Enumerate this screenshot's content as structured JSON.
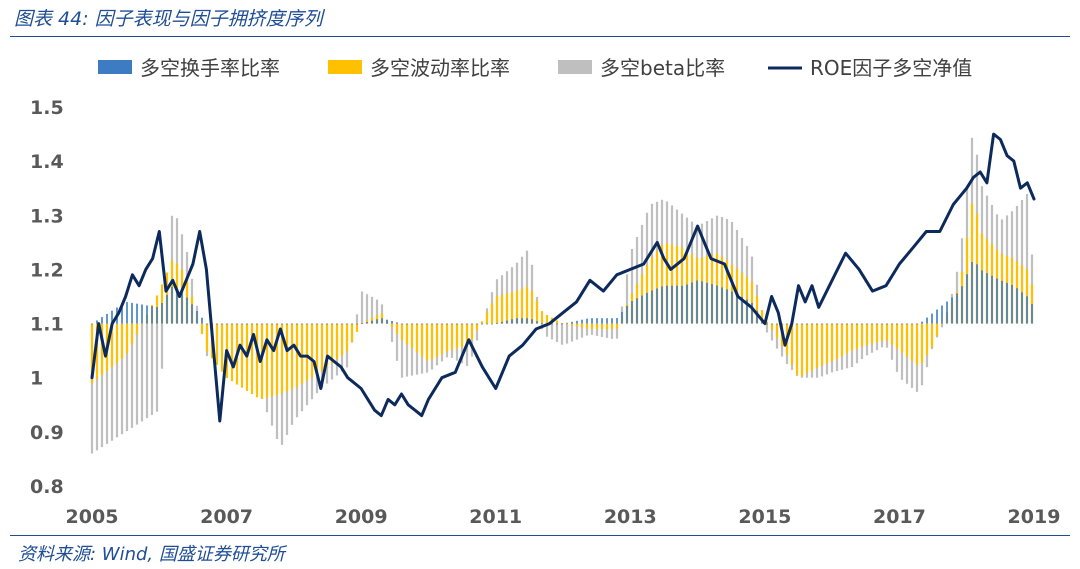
{
  "header": {
    "caption": "图表 44: 因子表现与因子拥挤度序列"
  },
  "footer": {
    "source": "资料来源: Wind, 国盛证券研究所"
  },
  "colors": {
    "turnover": "#3d7cc2",
    "volatility": "#ffc000",
    "beta": "#bfbfbf",
    "roe": "#0d2a5c",
    "accent": "#1f4e96"
  },
  "chart_data": {
    "type": "bar+line",
    "title": "因子表现与因子拥挤度序列",
    "xlabel": "",
    "ylabel": "",
    "ylim": [
      0.8,
      1.5
    ],
    "yticks": [
      "1.5",
      "1.4",
      "1.3",
      "1.2",
      "1.1",
      "1",
      "0.9",
      "0.8"
    ],
    "xlim": [
      2005,
      2019
    ],
    "xticks": [
      "2005",
      "2007",
      "2009",
      "2011",
      "2013",
      "2015",
      "2017",
      "2019"
    ],
    "bar_base": 1.1,
    "legend": {
      "turnover": "多空换手率比率",
      "volatility": "多空波动率比率",
      "beta": "多空beta比率",
      "roe": "ROE因子多空净值"
    },
    "bar_series": [
      {
        "name": "多空beta比率",
        "key": "beta",
        "x": [
          2005.0,
          2005.5,
          2006.0,
          2006.2,
          2006.4,
          2006.7,
          2007.0,
          2007.5,
          2007.8,
          2008.0,
          2008.4,
          2008.8,
          2009.0,
          2009.3,
          2009.6,
          2010.0,
          2010.3,
          2010.6,
          2011.0,
          2011.3,
          2011.5,
          2011.7,
          2012.0,
          2012.4,
          2012.8,
          2013.0,
          2013.3,
          2013.5,
          2013.8,
          2014.0,
          2014.3,
          2014.5,
          2014.8,
          2015.0,
          2015.3,
          2015.5,
          2015.8,
          2016.0,
          2016.3,
          2016.5,
          2016.8,
          2017.0,
          2017.3,
          2017.5,
          2017.7,
          2017.9,
          2018.1,
          2018.2,
          2018.5,
          2018.7,
          2018.9,
          2019.0
        ],
        "values": [
          0.86,
          0.9,
          0.94,
          1.32,
          1.24,
          1.04,
          1.04,
          0.97,
          0.87,
          0.92,
          0.98,
          1.02,
          1.16,
          1.14,
          1.0,
          1.01,
          1.04,
          1.02,
          1.18,
          1.21,
          1.24,
          1.08,
          1.06,
          1.08,
          1.07,
          1.23,
          1.32,
          1.33,
          1.3,
          1.28,
          1.3,
          1.29,
          1.23,
          1.09,
          1.03,
          1.0,
          1.0,
          1.01,
          1.02,
          1.04,
          1.06,
          1.0,
          0.97,
          1.06,
          1.11,
          1.22,
          1.47,
          1.36,
          1.29,
          1.31,
          1.34,
          1.18
        ]
      },
      {
        "name": "多空波动率比率",
        "key": "volatility",
        "x": [
          2005.0,
          2005.5,
          2006.0,
          2006.2,
          2006.4,
          2006.7,
          2007.0,
          2007.5,
          2007.8,
          2008.0,
          2008.4,
          2008.8,
          2009.0,
          2009.3,
          2009.6,
          2010.0,
          2010.3,
          2010.6,
          2011.0,
          2011.3,
          2011.5,
          2011.7,
          2012.0,
          2012.4,
          2012.8,
          2013.0,
          2013.3,
          2013.5,
          2013.8,
          2014.0,
          2014.3,
          2014.5,
          2014.8,
          2015.0,
          2015.3,
          2015.5,
          2015.8,
          2016.0,
          2016.3,
          2016.5,
          2016.8,
          2017.0,
          2017.3,
          2017.5,
          2017.7,
          2017.9,
          2018.1,
          2018.2,
          2018.5,
          2018.7,
          2018.9,
          2019.0
        ],
        "values": [
          0.99,
          1.04,
          1.16,
          1.22,
          1.19,
          1.05,
          1.0,
          0.96,
          0.97,
          0.98,
          1.01,
          1.05,
          1.1,
          1.12,
          1.07,
          1.03,
          1.05,
          1.06,
          1.15,
          1.16,
          1.17,
          1.12,
          1.1,
          1.09,
          1.09,
          1.15,
          1.22,
          1.25,
          1.24,
          1.22,
          1.23,
          1.21,
          1.18,
          1.11,
          1.05,
          1.0,
          1.02,
          1.03,
          1.05,
          1.06,
          1.07,
          1.05,
          1.02,
          1.06,
          1.12,
          1.17,
          1.34,
          1.27,
          1.23,
          1.22,
          1.2,
          1.16
        ]
      },
      {
        "name": "多空换手率比率",
        "key": "turnover",
        "x": [
          2005.0,
          2005.5,
          2006.0,
          2006.2,
          2006.4,
          2006.7,
          2007.0,
          2007.5,
          2007.8,
          2008.0,
          2008.4,
          2008.8,
          2009.0,
          2009.3,
          2009.6,
          2010.0,
          2010.3,
          2010.6,
          2011.0,
          2011.3,
          2011.5,
          2011.7,
          2012.0,
          2012.4,
          2012.8,
          2013.0,
          2013.3,
          2013.5,
          2013.8,
          2014.0,
          2014.3,
          2014.5,
          2014.8,
          2015.0,
          2015.3,
          2015.5,
          2015.8,
          2016.0,
          2016.3,
          2016.5,
          2016.8,
          2017.0,
          2017.3,
          2017.5,
          2017.7,
          2017.9,
          2018.1,
          2018.2,
          2018.5,
          2018.7,
          2018.9,
          2019.0
        ],
        "values": [
          1.1,
          1.14,
          1.13,
          1.17,
          1.15,
          1.1,
          1.1,
          1.1,
          1.1,
          1.1,
          1.1,
          1.1,
          1.1,
          1.11,
          1.1,
          1.1,
          1.1,
          1.1,
          1.1,
          1.11,
          1.11,
          1.1,
          1.1,
          1.11,
          1.11,
          1.14,
          1.16,
          1.17,
          1.17,
          1.18,
          1.17,
          1.16,
          1.14,
          1.1,
          1.1,
          1.1,
          1.1,
          1.1,
          1.1,
          1.1,
          1.1,
          1.1,
          1.1,
          1.12,
          1.14,
          1.16,
          1.22,
          1.2,
          1.18,
          1.17,
          1.15,
          1.13
        ]
      }
    ],
    "line_series": {
      "name": "ROE因子多空净值",
      "x": [
        2005.0,
        2005.1,
        2005.2,
        2005.3,
        2005.4,
        2005.5,
        2005.6,
        2005.7,
        2005.8,
        2005.9,
        2006.0,
        2006.1,
        2006.2,
        2006.3,
        2006.4,
        2006.5,
        2006.6,
        2006.7,
        2006.8,
        2006.9,
        2007.0,
        2007.1,
        2007.2,
        2007.3,
        2007.4,
        2007.5,
        2007.6,
        2007.7,
        2007.8,
        2007.9,
        2008.0,
        2008.1,
        2008.2,
        2008.3,
        2008.4,
        2008.5,
        2008.6,
        2008.7,
        2008.8,
        2008.9,
        2009.0,
        2009.1,
        2009.2,
        2009.3,
        2009.4,
        2009.5,
        2009.6,
        2009.7,
        2009.8,
        2009.9,
        2010.0,
        2010.2,
        2010.4,
        2010.6,
        2010.8,
        2011.0,
        2011.2,
        2011.4,
        2011.6,
        2011.8,
        2012.0,
        2012.2,
        2012.4,
        2012.6,
        2012.8,
        2013.0,
        2013.2,
        2013.4,
        2013.5,
        2013.6,
        2013.8,
        2014.0,
        2014.1,
        2014.2,
        2014.4,
        2014.6,
        2014.8,
        2015.0,
        2015.1,
        2015.2,
        2015.3,
        2015.4,
        2015.5,
        2015.6,
        2015.7,
        2015.8,
        2016.0,
        2016.2,
        2016.4,
        2016.6,
        2016.8,
        2017.0,
        2017.2,
        2017.4,
        2017.6,
        2017.8,
        2018.0,
        2018.1,
        2018.2,
        2018.3,
        2018.4,
        2018.5,
        2018.6,
        2018.7,
        2018.8,
        2018.9,
        2019.0
      ],
      "values": [
        1.0,
        1.1,
        1.04,
        1.1,
        1.12,
        1.15,
        1.19,
        1.17,
        1.2,
        1.22,
        1.27,
        1.16,
        1.18,
        1.15,
        1.18,
        1.21,
        1.27,
        1.2,
        1.06,
        0.92,
        1.05,
        1.02,
        1.06,
        1.04,
        1.08,
        1.03,
        1.07,
        1.05,
        1.09,
        1.05,
        1.06,
        1.04,
        1.04,
        1.03,
        0.98,
        1.04,
        1.03,
        1.02,
        1.0,
        0.99,
        0.98,
        0.96,
        0.94,
        0.93,
        0.96,
        0.95,
        0.97,
        0.95,
        0.94,
        0.93,
        0.96,
        1.0,
        1.01,
        1.07,
        1.02,
        0.98,
        1.04,
        1.06,
        1.09,
        1.1,
        1.12,
        1.14,
        1.18,
        1.16,
        1.19,
        1.2,
        1.21,
        1.25,
        1.22,
        1.2,
        1.22,
        1.28,
        1.25,
        1.22,
        1.21,
        1.15,
        1.13,
        1.1,
        1.15,
        1.12,
        1.06,
        1.1,
        1.17,
        1.14,
        1.17,
        1.13,
        1.18,
        1.23,
        1.2,
        1.16,
        1.17,
        1.21,
        1.24,
        1.27,
        1.27,
        1.32,
        1.35,
        1.37,
        1.38,
        1.36,
        1.45,
        1.44,
        1.41,
        1.4,
        1.35,
        1.36,
        1.33
      ]
    }
  }
}
